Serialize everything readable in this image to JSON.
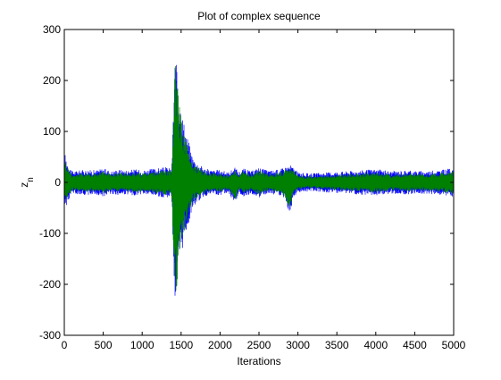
{
  "chart_data": {
    "type": "line",
    "title": "Plot of complex sequence",
    "xlabel": "Iterations",
    "ylabel": "z",
    "ylabel_subscript": "n",
    "xlim": [
      0,
      5000
    ],
    "ylim": [
      -300,
      300
    ],
    "x_ticks": [
      0,
      500,
      1000,
      1500,
      2000,
      2500,
      3000,
      3500,
      4000,
      4500,
      5000
    ],
    "y_ticks": [
      -300,
      -200,
      -100,
      0,
      100,
      200,
      300
    ],
    "x_tick_labels": [
      "0",
      "500",
      "1000",
      "1500",
      "2000",
      "2500",
      "3000",
      "3500",
      "4000",
      "4500",
      "5000"
    ],
    "y_tick_labels": [
      "-300",
      "-200",
      "-100",
      "0",
      "100",
      "200",
      "300"
    ],
    "grid": false,
    "series": [
      {
        "color": "#0000ff",
        "envelope": {
          "x": [
            0,
            40,
            100,
            200,
            300,
            400,
            500,
            600,
            700,
            800,
            900,
            1000,
            1100,
            1200,
            1300,
            1380,
            1420,
            1440,
            1460,
            1500,
            1550,
            1600,
            1650,
            1700,
            1800,
            1900,
            2000,
            2100,
            2200,
            2240,
            2300,
            2400,
            2500,
            2600,
            2700,
            2800,
            2900,
            2940,
            3000,
            3100,
            3200,
            3400,
            3600,
            3800,
            4000,
            4200,
            4400,
            4600,
            4800,
            5000
          ],
          "upper": [
            62,
            40,
            22,
            24,
            25,
            24,
            28,
            22,
            26,
            24,
            26,
            24,
            26,
            28,
            30,
            28,
            255,
            230,
            200,
            150,
            110,
            80,
            50,
            40,
            28,
            24,
            25,
            20,
            30,
            20,
            28,
            22,
            30,
            24,
            24,
            28,
            35,
            30,
            20,
            18,
            18,
            20,
            22,
            24,
            26,
            22,
            24,
            22,
            24,
            28
          ],
          "lower": [
            -60,
            -40,
            -22,
            -24,
            -25,
            -24,
            -28,
            -22,
            -26,
            -24,
            -26,
            -24,
            -26,
            -28,
            -30,
            -28,
            -260,
            -230,
            -200,
            -150,
            -110,
            -80,
            -50,
            -40,
            -28,
            -24,
            -25,
            -20,
            -42,
            -20,
            -28,
            -22,
            -30,
            -24,
            -24,
            -28,
            -62,
            -30,
            -20,
            -18,
            -18,
            -20,
            -22,
            -24,
            -26,
            -22,
            -24,
            -22,
            -24,
            -28
          ]
        }
      },
      {
        "color": "#008000",
        "envelope": {
          "x": [
            0,
            40,
            100,
            200,
            300,
            400,
            500,
            600,
            700,
            800,
            900,
            1000,
            1100,
            1200,
            1300,
            1380,
            1420,
            1440,
            1460,
            1500,
            1550,
            1600,
            1650,
            1700,
            1800,
            1900,
            2000,
            2100,
            2200,
            2240,
            2300,
            2400,
            2500,
            2600,
            2700,
            2800,
            2900,
            2940,
            3000,
            3100,
            3200,
            3400,
            3600,
            3800,
            4000,
            4200,
            4400,
            4600,
            4800,
            5000
          ],
          "upper": [
            48,
            32,
            16,
            18,
            19,
            18,
            22,
            16,
            20,
            18,
            20,
            18,
            20,
            22,
            24,
            22,
            245,
            215,
            180,
            130,
            90,
            64,
            40,
            32,
            22,
            18,
            19,
            14,
            24,
            14,
            22,
            16,
            24,
            18,
            18,
            22,
            28,
            24,
            14,
            12,
            12,
            14,
            16,
            18,
            20,
            16,
            18,
            16,
            18,
            22
          ],
          "lower": [
            -46,
            -32,
            -16,
            -18,
            -19,
            -18,
            -22,
            -16,
            -20,
            -18,
            -20,
            -18,
            -20,
            -22,
            -24,
            -22,
            -250,
            -215,
            -180,
            -130,
            -90,
            -64,
            -40,
            -32,
            -22,
            -18,
            -19,
            -14,
            -34,
            -14,
            -22,
            -16,
            -24,
            -18,
            -18,
            -22,
            -50,
            -24,
            -14,
            -12,
            -12,
            -14,
            -16,
            -18,
            -20,
            -16,
            -18,
            -16,
            -18,
            -22
          ]
        }
      }
    ]
  }
}
